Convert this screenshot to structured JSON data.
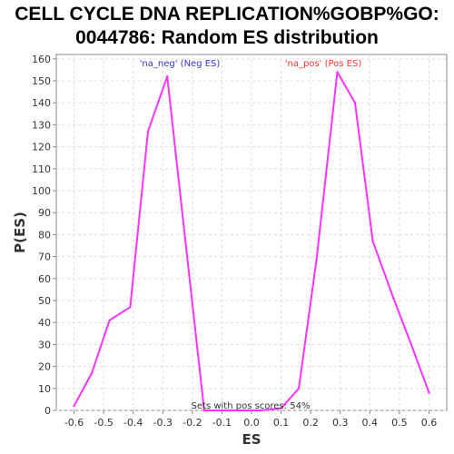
{
  "chart_data": {
    "type": "line",
    "title_lines": [
      "CELL CYCLE DNA REPLICATION%GOBP%GO:",
      "0044786: Random ES distribution"
    ],
    "xlabel": "ES",
    "ylabel": "P(ES)",
    "xlim": [
      -0.66,
      0.66
    ],
    "ylim": [
      0,
      162
    ],
    "xticks": [
      "-0.6",
      "-0.5",
      "-0.4",
      "-0.3",
      "-0.2",
      "-0.1",
      "0.0",
      "0.1",
      "0.2",
      "0.3",
      "0.4",
      "0.5",
      "0.6"
    ],
    "xtick_values": [
      -0.6,
      -0.5,
      -0.4,
      -0.3,
      -0.2,
      -0.1,
      0.0,
      0.1,
      0.2,
      0.3,
      0.4,
      0.5,
      0.6
    ],
    "yticks": [
      "0",
      "10",
      "20",
      "30",
      "40",
      "50",
      "60",
      "70",
      "80",
      "90",
      "100",
      "110",
      "120",
      "130",
      "140",
      "150",
      "160"
    ],
    "ytick_values": [
      0,
      10,
      20,
      30,
      40,
      50,
      60,
      70,
      80,
      90,
      100,
      110,
      120,
      130,
      140,
      150,
      160
    ],
    "grid": true,
    "series": [
      {
        "color": "#ff33ff",
        "x": [
          -0.6,
          -0.54,
          -0.48,
          -0.41,
          -0.35,
          -0.285,
          -0.22,
          -0.16,
          -0.1,
          -0.03,
          0.03,
          0.1,
          0.16,
          0.22,
          0.29,
          0.35,
          0.41,
          0.48,
          0.54,
          0.6
        ],
        "y": [
          2,
          17,
          41,
          47,
          127,
          152,
          73,
          0,
          0,
          0,
          0,
          1,
          10,
          69,
          154,
          140,
          77,
          51,
          30,
          8
        ]
      }
    ],
    "annotations": {
      "neg_label": "'na_neg' (Neg ES)",
      "neg_color": "#3333cc",
      "pos_label": "'na_pos' (Pos ES)",
      "pos_color": "#ff3333",
      "sets_text": "Sets with pos scores: 54%"
    }
  }
}
